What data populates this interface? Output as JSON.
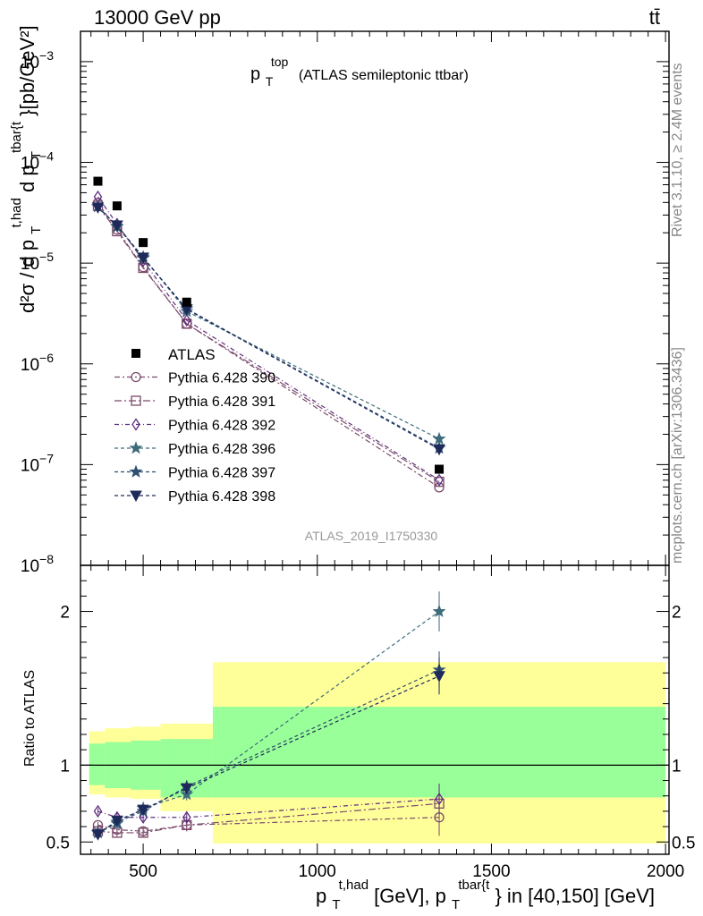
{
  "header": {
    "energy_label": "13000 GeV pp",
    "process_label": "tt̄"
  },
  "side_labels": {
    "rivet": "Rivet 3.1.10, ≥ 2.4M events",
    "source": "mcplots.cern.ch [arXiv:1306.3436]"
  },
  "chart_data": {
    "type": "scatter",
    "title_main": "p",
    "title_sub": "T",
    "title_sup": "top",
    "title_rest": "(ATLAS semileptonic ttbar)",
    "analysis_label": "ATLAS_2019_I1750330",
    "ylabel_main": "d²σ / d p",
    "ylabel_part2": " d p",
    "ylabel_sub": "T",
    "ylabel_sup1": "t,had",
    "ylabel_sup2": "tbar{t",
    "ylabel_units": "}[pb/GeV²]",
    "ratio_ylabel": "Ratio to ATLAS",
    "xlabel_p": "p",
    "xlabel_sub": "T",
    "xlabel_sup1": "t,had",
    "xlabel_mid": " [GeV], p",
    "xlabel_sup2": "tbar{t",
    "xlabel_end": "} in [40,150] [GeV]",
    "x_range": [
      320,
      2010
    ],
    "y_range_log": [
      1e-08,
      0.002
    ],
    "ratio_range": [
      0.42,
      2.3
    ],
    "x_ticks": [
      "500",
      "1000",
      "1500",
      "2000"
    ],
    "x_tick_values": [
      500,
      1000,
      1500,
      2000
    ],
    "y_ticks": [
      {
        "base": "10",
        "exp": "−3",
        "value": 0.001
      },
      {
        "base": "10",
        "exp": "−4",
        "value": 0.0001
      },
      {
        "base": "10",
        "exp": "−5",
        "value": 1e-05
      },
      {
        "base": "10",
        "exp": "−6",
        "value": 1e-06
      },
      {
        "base": "10",
        "exp": "−7",
        "value": 1e-07
      },
      {
        "base": "10",
        "exp": "−8",
        "value": 1e-08
      }
    ],
    "ratio_ticks": [
      "0.5",
      "1",
      "2"
    ],
    "ratio_tick_values": [
      0.5,
      1,
      2
    ],
    "x": [
      370,
      425,
      500,
      625,
      1350
    ],
    "data_series": {
      "name": "ATLAS",
      "values": [
        6.5e-05,
        3.7e-05,
        1.6e-05,
        4.1e-06,
        9e-08
      ]
    },
    "series": [
      {
        "name": "Pythia 6.428 390",
        "color": "#7b4b6b",
        "dash": "6,3,2,3",
        "marker": "circle",
        "ratio": [
          0.61,
          0.58,
          0.57,
          0.61,
          0.66
        ],
        "ratio_err": [
          0.02,
          0.03,
          0.03,
          0.04,
          0.12
        ]
      },
      {
        "name": "Pythia 6.428 391",
        "color": "#7b4b6b",
        "dash": "8,3,2,3",
        "marker": "square",
        "ratio": [
          0.57,
          0.56,
          0.56,
          0.61,
          0.75
        ],
        "ratio_err": [
          0.02,
          0.03,
          0.03,
          0.04,
          0.11
        ]
      },
      {
        "name": "Pythia 6.428 392",
        "color": "#5e2e7e",
        "dash": "5,3,1,3",
        "marker": "diamond",
        "ratio": [
          0.7,
          0.66,
          0.66,
          0.66,
          0.78
        ],
        "ratio_err": [
          0.02,
          0.03,
          0.03,
          0.04,
          0.1
        ]
      },
      {
        "name": "Pythia 6.428 396",
        "color": "#3d6b7a",
        "dash": "4,3",
        "marker": "star",
        "ratio": [
          0.56,
          0.62,
          0.72,
          0.81,
          2.0
        ],
        "ratio_err": [
          0.02,
          0.03,
          0.03,
          0.04,
          0.13
        ]
      },
      {
        "name": "Pythia 6.428 397",
        "color": "#2f5070",
        "dash": "4,3",
        "marker": "star",
        "ratio": [
          0.56,
          0.63,
          0.7,
          0.86,
          1.62
        ],
        "ratio_err": [
          0.02,
          0.03,
          0.03,
          0.04,
          0.12
        ]
      },
      {
        "name": "Pythia 6.428 398",
        "color": "#1e2a5a",
        "dash": "4,3",
        "marker": "triangle-down",
        "ratio": [
          0.55,
          0.64,
          0.71,
          0.85,
          1.58
        ],
        "ratio_err": [
          0.02,
          0.03,
          0.03,
          0.04,
          0.12
        ]
      }
    ],
    "uncertainty_bands": [
      {
        "x0": 345,
        "x1": 390,
        "inner": [
          0.87,
          1.14
        ],
        "outer": [
          0.81,
          1.22
        ]
      },
      {
        "x0": 390,
        "x1": 465,
        "inner": [
          0.85,
          1.15
        ],
        "outer": [
          0.79,
          1.24
        ]
      },
      {
        "x0": 465,
        "x1": 550,
        "inner": [
          0.84,
          1.16
        ],
        "outer": [
          0.78,
          1.25
        ]
      },
      {
        "x0": 550,
        "x1": 700,
        "inner": [
          0.79,
          1.17
        ],
        "outer": [
          0.7,
          1.27
        ]
      },
      {
        "x0": 700,
        "x1": 2000,
        "inner": [
          0.79,
          1.38
        ],
        "outer": [
          0.49,
          1.67
        ]
      }
    ]
  }
}
